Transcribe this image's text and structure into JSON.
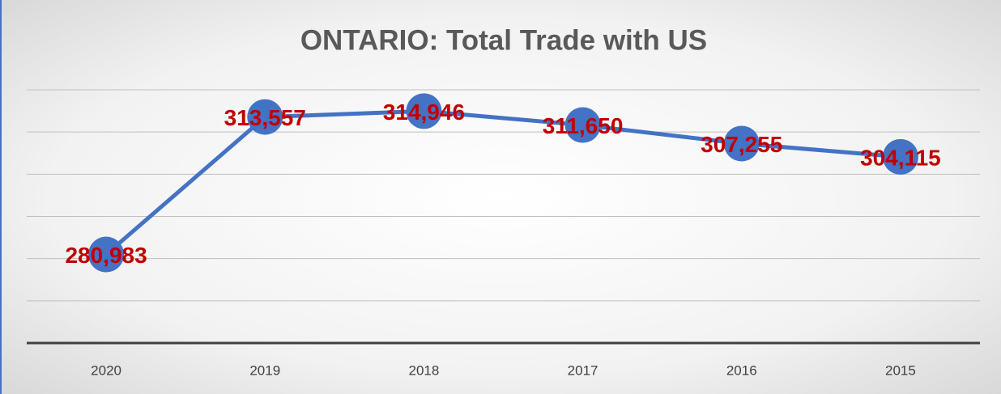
{
  "chart_data": {
    "type": "line",
    "title": "ONTARIO: Total Trade with US",
    "categories": [
      "2020",
      "2019",
      "2018",
      "2017",
      "2016",
      "2015"
    ],
    "series": [
      {
        "name": "Total Trade",
        "color": "#4472c4",
        "values": [
          280983,
          313557,
          314946,
          311650,
          307255,
          304115
        ],
        "value_labels": [
          "280,983",
          "313,557",
          "314,946",
          "311,650",
          "307,255",
          "304,115"
        ]
      }
    ],
    "ylim": [
      260000,
      320000
    ],
    "yticks": [
      260000,
      270000,
      280000,
      290000,
      300000,
      310000,
      320000
    ],
    "grid": true,
    "label_color": "#c00000"
  }
}
